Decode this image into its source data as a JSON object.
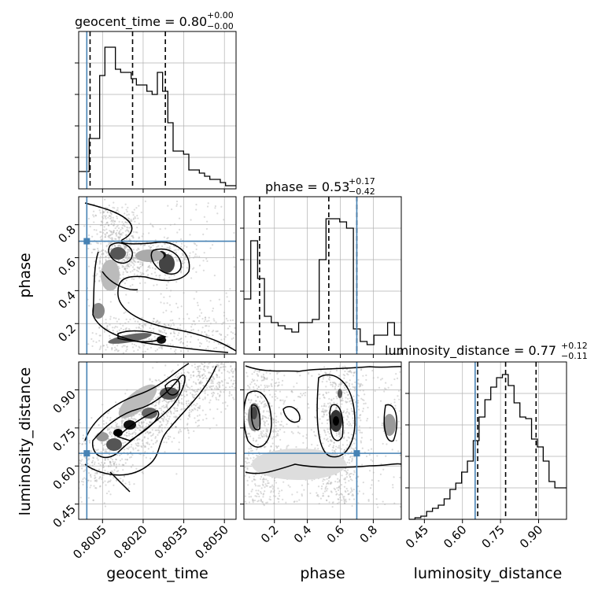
{
  "chart_data": {
    "type": "corner",
    "parameters": [
      {
        "name": "geocent_time",
        "title": {
          "base": "geocent_time = 0.80",
          "sup": "+0.00",
          "sub": "−0.00"
        }
      },
      {
        "name": "phase",
        "title": {
          "base": "phase = 0.53",
          "sup": "+0.17",
          "sub": "−0.42"
        }
      },
      {
        "name": "luminosity_distance",
        "title": {
          "base": "luminosity_distance = 0.77",
          "sup": "+0.12",
          "sub": "−0.11"
        }
      }
    ],
    "axis_labels": {
      "geocent_time": "geocent_time",
      "phase": "phase",
      "luminosity_distance": "luminosity_distance"
    },
    "ticks": {
      "geocent_time": [
        "0.8005",
        "0.8020",
        "0.8035",
        "0.8050"
      ],
      "phase": [
        "0.2",
        "0.4",
        "0.6",
        "0.8"
      ],
      "luminosity_distance": [
        "0.45",
        "0.60",
        "0.75",
        "0.90"
      ]
    },
    "ranges": {
      "geocent_time": [
        0.79962,
        0.80543
      ],
      "phase": [
        0.015,
        0.97
      ],
      "luminosity_distance": [
        0.39,
        1.01
      ]
    },
    "truths": {
      "geocent_time": 0.79992,
      "phase": 0.7,
      "luminosity_distance": 0.65
    },
    "quantiles": {
      "geocent_time": [
        0.80004,
        0.80161,
        0.80282
      ],
      "phase": [
        0.11,
        0.53,
        0.7
      ],
      "luminosity_distance": [
        0.66,
        0.77,
        0.89
      ]
    },
    "hist_1d": {
      "geocent_time": [
        0.11,
        0.11,
        0.32,
        0.32,
        0.72,
        0.9,
        0.9,
        0.76,
        0.74,
        0.74,
        0.7,
        0.66,
        0.66,
        0.62,
        0.6,
        0.74,
        0.62,
        0.42,
        0.24,
        0.24,
        0.22,
        0.12,
        0.12,
        0.1,
        0.08,
        0.06,
        0.06,
        0.04,
        0.02,
        0.02
      ],
      "phase": [
        0.35,
        0.72,
        0.48,
        0.24,
        0.2,
        0.18,
        0.16,
        0.14,
        0.2,
        0.2,
        0.22,
        0.6,
        0.86,
        0.86,
        0.84,
        0.8,
        0.16,
        0.08,
        0.06,
        0.12,
        0.12,
        0.2,
        0.12
      ],
      "luminosity_distance": [
        0.0,
        0.01,
        0.02,
        0.05,
        0.07,
        0.09,
        0.13,
        0.19,
        0.23,
        0.3,
        0.37,
        0.5,
        0.65,
        0.76,
        0.84,
        0.9,
        0.92,
        0.85,
        0.74,
        0.65,
        0.64,
        0.51,
        0.46,
        0.37,
        0.24,
        0.2,
        0.2
      ]
    },
    "grid": true,
    "colors": {
      "truth": "#4682b4",
      "hist": "#000000",
      "scatter": "#b0b0b0",
      "grid": "#b0b0b0"
    }
  }
}
